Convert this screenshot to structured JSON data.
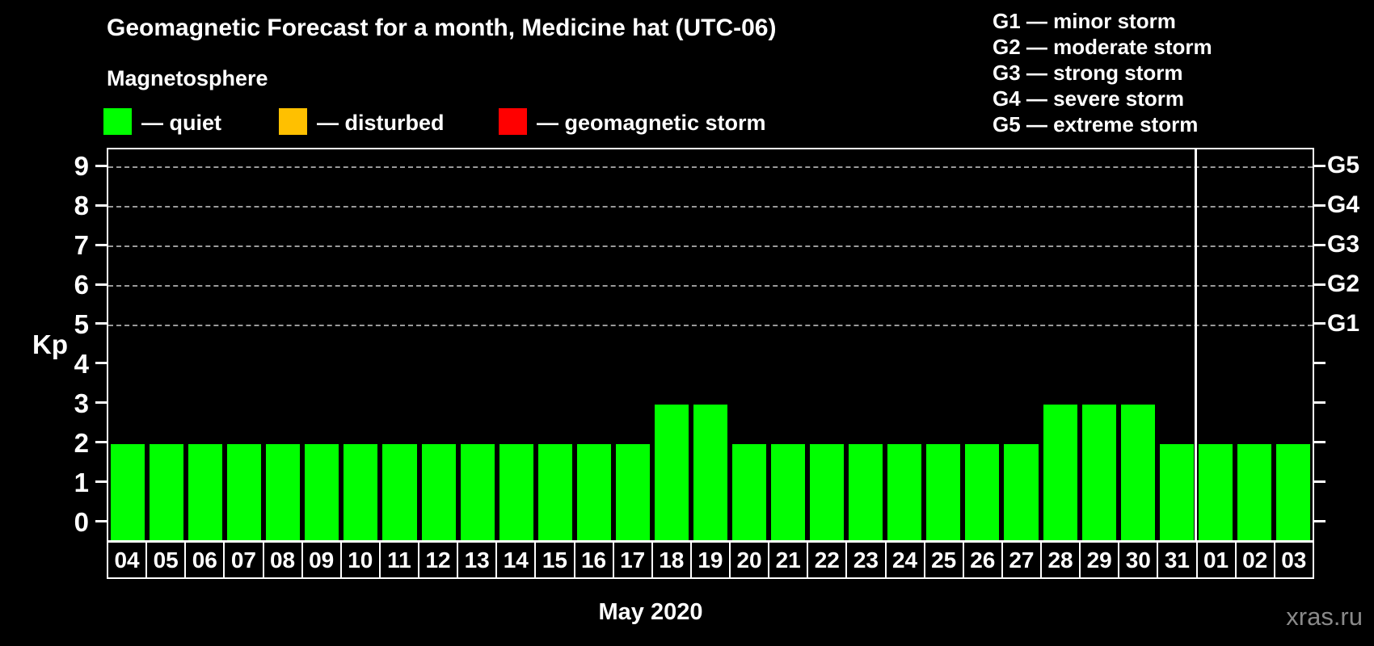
{
  "header": {
    "title": "Geomagnetic Forecast for a month, Medicine hat (UTC-06)",
    "subtitle": "Magnetosphere"
  },
  "legend": {
    "items": [
      {
        "name": "quiet",
        "label": "— quiet",
        "color": "#00FF00"
      },
      {
        "name": "disturbed",
        "label": "— disturbed",
        "color": "#FFC000"
      },
      {
        "name": "geomagnetic-storm",
        "label": "— geomagnetic storm",
        "color": "#FF0000"
      }
    ]
  },
  "g_scale_legend": {
    "lines": [
      "G1 — minor storm",
      "G2 — moderate storm",
      "G3 — strong storm",
      "G4 — severe storm",
      "G5 — extreme storm"
    ]
  },
  "chart_data": {
    "type": "bar",
    "title": "Geomagnetic Forecast for a month, Medicine hat (UTC-06)",
    "xlabel": "May 2020",
    "ylabel": "Kp",
    "categories": [
      "04",
      "05",
      "06",
      "07",
      "08",
      "09",
      "10",
      "11",
      "12",
      "13",
      "14",
      "15",
      "16",
      "17",
      "18",
      "19",
      "20",
      "21",
      "22",
      "23",
      "24",
      "25",
      "26",
      "27",
      "28",
      "29",
      "30",
      "31",
      "01",
      "02",
      "03"
    ],
    "values": [
      2,
      2,
      2,
      2,
      2,
      2,
      2,
      2,
      2,
      2,
      2,
      2,
      2,
      2,
      3,
      3,
      2,
      2,
      2,
      2,
      2,
      2,
      2,
      2,
      3,
      3,
      3,
      2,
      2,
      2,
      2
    ],
    "ylim": [
      0,
      9
    ],
    "yticks": [
      0,
      1,
      2,
      3,
      4,
      5,
      6,
      7,
      8,
      9
    ],
    "gridlines_at": [
      5,
      6,
      7,
      8,
      9
    ],
    "grid_style": "dashed-horizontal",
    "right_axis_labels": [
      {
        "label": "G5",
        "kp": 9
      },
      {
        "label": "G4",
        "kp": 8
      },
      {
        "label": "G3",
        "kp": 7
      },
      {
        "label": "G2",
        "kp": 6
      },
      {
        "label": "G1",
        "kp": 5
      }
    ],
    "color_thresholds": {
      "storm_min_kp": 5,
      "disturbed_min_kp": 4
    },
    "month_separator_after": "31",
    "legend_position": "top-left"
  },
  "footer": {
    "watermark": "xras.ru"
  }
}
